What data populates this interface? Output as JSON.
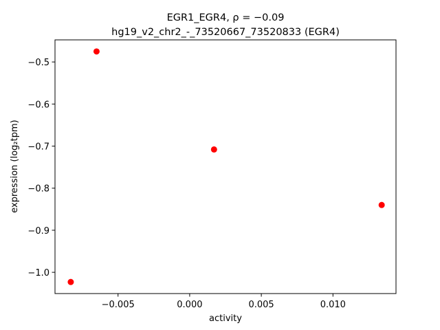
{
  "chart_data": {
    "type": "scatter",
    "title_line1": "EGR1_EGR4, ρ = −0.09",
    "title_line2": "hg19_v2_chr2_-_73520667_73520833 (EGR4)",
    "xlabel": "activity",
    "ylabel": "expression (log₂tpm)",
    "xlim": [
      -0.0094,
      0.0144
    ],
    "ylim": [
      -1.0505,
      -0.4475
    ],
    "xticks": [
      {
        "value": -0.005,
        "label": "−0.005"
      },
      {
        "value": 0.0,
        "label": "0.000"
      },
      {
        "value": 0.005,
        "label": "0.005"
      },
      {
        "value": 0.01,
        "label": "0.010"
      }
    ],
    "yticks": [
      {
        "value": -0.5,
        "label": "−0.5"
      },
      {
        "value": -0.6,
        "label": "−0.6"
      },
      {
        "value": -0.7,
        "label": "−0.7"
      },
      {
        "value": -0.8,
        "label": "−0.8"
      },
      {
        "value": -0.9,
        "label": "−0.9"
      },
      {
        "value": -1.0,
        "label": "−1.0"
      }
    ],
    "points": [
      {
        "x": -0.0065,
        "y": -0.475
      },
      {
        "x": 0.0017,
        "y": -0.708
      },
      {
        "x": 0.0134,
        "y": -0.84
      },
      {
        "x": -0.0083,
        "y": -1.023
      }
    ],
    "point_color": "#ff0000",
    "grid": false
  }
}
